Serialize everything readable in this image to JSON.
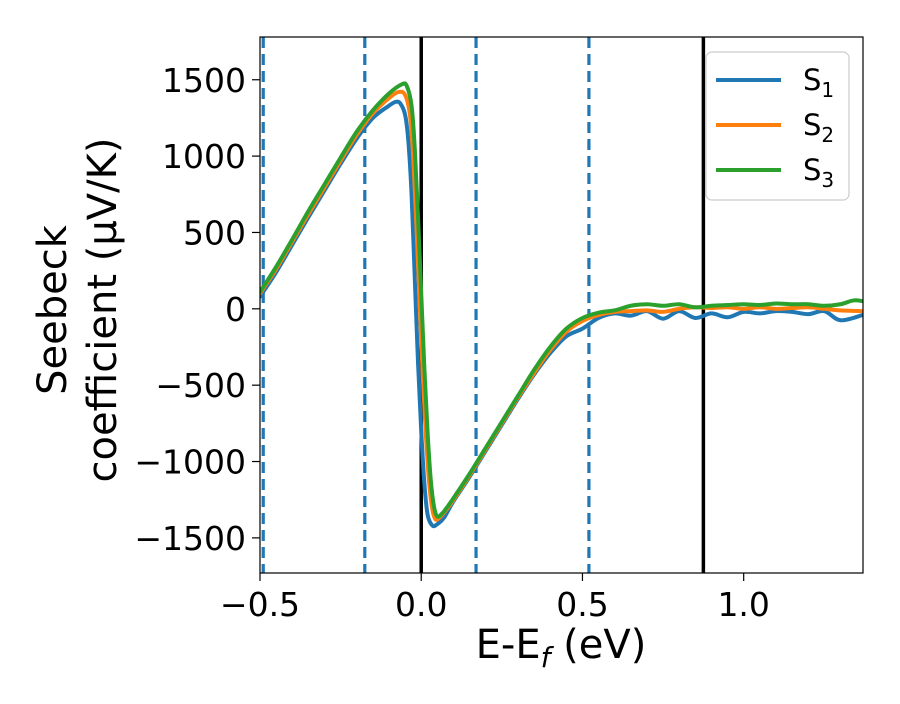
{
  "chart_data": {
    "type": "line",
    "title": "",
    "xlabel": {
      "main": "E-E",
      "sub": "f",
      "unit": " (eV)"
    },
    "ylabel": {
      "line1": "Seebeck",
      "line2": "coefficient  (μV/K)"
    },
    "xlim": [
      -0.5,
      1.37
    ],
    "ylim": [
      -1730,
      1780
    ],
    "xticks": [
      {
        "value": -0.5,
        "label": "−0.5"
      },
      {
        "value": 0.0,
        "label": "0.0"
      },
      {
        "value": 0.5,
        "label": "0.5"
      },
      {
        "value": 1.0,
        "label": "1.0"
      }
    ],
    "yticks": [
      {
        "value": -1500,
        "label": "−1500"
      },
      {
        "value": -1000,
        "label": "−1000"
      },
      {
        "value": -500,
        "label": "−500"
      },
      {
        "value": 0,
        "label": "0"
      },
      {
        "value": 500,
        "label": "500"
      },
      {
        "value": 1000,
        "label": "1000"
      },
      {
        "value": 1500,
        "label": "1500"
      }
    ],
    "grid": false,
    "legend_position": "top-right",
    "vertical_lines": [
      {
        "x": -0.49,
        "style": "dashed",
        "color": "#1f77b4"
      },
      {
        "x": -0.175,
        "style": "dashed",
        "color": "#1f77b4"
      },
      {
        "x": 0.0,
        "style": "solid",
        "color": "#000000"
      },
      {
        "x": 0.17,
        "style": "dashed",
        "color": "#1f77b4"
      },
      {
        "x": 0.52,
        "style": "dashed",
        "color": "#1f77b4"
      },
      {
        "x": 0.875,
        "style": "solid",
        "color": "#000000"
      }
    ],
    "series": [
      {
        "name": "S",
        "name_sub": "1",
        "color": "#1f77b4",
        "points": [
          [
            -0.5,
            80
          ],
          [
            -0.45,
            240
          ],
          [
            -0.4,
            420
          ],
          [
            -0.35,
            600
          ],
          [
            -0.3,
            775
          ],
          [
            -0.25,
            950
          ],
          [
            -0.2,
            1115
          ],
          [
            -0.15,
            1250
          ],
          [
            -0.1,
            1330
          ],
          [
            -0.08,
            1355
          ],
          [
            -0.065,
            1345
          ],
          [
            -0.05,
            1270
          ],
          [
            -0.04,
            1100
          ],
          [
            -0.03,
            750
          ],
          [
            -0.02,
            200
          ],
          [
            -0.01,
            -350
          ],
          [
            0.0,
            -800
          ],
          [
            0.01,
            -1150
          ],
          [
            0.02,
            -1350
          ],
          [
            0.035,
            -1420
          ],
          [
            0.05,
            -1410
          ],
          [
            0.07,
            -1370
          ],
          [
            0.1,
            -1260
          ],
          [
            0.15,
            -1100
          ],
          [
            0.2,
            -930
          ],
          [
            0.25,
            -760
          ],
          [
            0.3,
            -590
          ],
          [
            0.35,
            -430
          ],
          [
            0.4,
            -290
          ],
          [
            0.45,
            -180
          ],
          [
            0.5,
            -130
          ],
          [
            0.55,
            -60
          ],
          [
            0.6,
            -30
          ],
          [
            0.65,
            -45
          ],
          [
            0.7,
            -15
          ],
          [
            0.75,
            -65
          ],
          [
            0.8,
            -15
          ],
          [
            0.85,
            -60
          ],
          [
            0.9,
            -30
          ],
          [
            0.95,
            -55
          ],
          [
            1.0,
            -20
          ],
          [
            1.05,
            -30
          ],
          [
            1.1,
            -15
          ],
          [
            1.15,
            -20
          ],
          [
            1.2,
            -35
          ],
          [
            1.25,
            -15
          ],
          [
            1.3,
            -75
          ],
          [
            1.37,
            -40
          ]
        ]
      },
      {
        "name": "S",
        "name_sub": "2",
        "color": "#ff7f0e",
        "points": [
          [
            -0.5,
            100
          ],
          [
            -0.45,
            260
          ],
          [
            -0.4,
            440
          ],
          [
            -0.35,
            620
          ],
          [
            -0.3,
            795
          ],
          [
            -0.25,
            970
          ],
          [
            -0.2,
            1140
          ],
          [
            -0.15,
            1280
          ],
          [
            -0.1,
            1380
          ],
          [
            -0.07,
            1420
          ],
          [
            -0.05,
            1400
          ],
          [
            -0.035,
            1270
          ],
          [
            -0.025,
            1000
          ],
          [
            -0.015,
            550
          ],
          [
            -0.005,
            50
          ],
          [
            0.005,
            -450
          ],
          [
            0.015,
            -850
          ],
          [
            0.025,
            -1150
          ],
          [
            0.035,
            -1320
          ],
          [
            0.045,
            -1380
          ],
          [
            0.06,
            -1360
          ],
          [
            0.08,
            -1310
          ],
          [
            0.1,
            -1250
          ],
          [
            0.15,
            -1090
          ],
          [
            0.2,
            -920
          ],
          [
            0.25,
            -750
          ],
          [
            0.3,
            -580
          ],
          [
            0.35,
            -420
          ],
          [
            0.4,
            -270
          ],
          [
            0.45,
            -150
          ],
          [
            0.5,
            -80
          ],
          [
            0.55,
            -40
          ],
          [
            0.6,
            -20
          ],
          [
            0.65,
            -15
          ],
          [
            0.7,
            -10
          ],
          [
            0.75,
            -20
          ],
          [
            0.8,
            0
          ],
          [
            0.85,
            10
          ],
          [
            0.9,
            5
          ],
          [
            0.95,
            10
          ],
          [
            1.0,
            0
          ],
          [
            1.05,
            10
          ],
          [
            1.1,
            0
          ],
          [
            1.15,
            5
          ],
          [
            1.2,
            10
          ],
          [
            1.25,
            0
          ],
          [
            1.3,
            -10
          ],
          [
            1.37,
            -15
          ]
        ]
      },
      {
        "name": "S",
        "name_sub": "3",
        "color": "#2ca02c",
        "points": [
          [
            -0.5,
            110
          ],
          [
            -0.45,
            275
          ],
          [
            -0.4,
            455
          ],
          [
            -0.35,
            640
          ],
          [
            -0.3,
            815
          ],
          [
            -0.25,
            990
          ],
          [
            -0.2,
            1160
          ],
          [
            -0.15,
            1300
          ],
          [
            -0.1,
            1410
          ],
          [
            -0.06,
            1470
          ],
          [
            -0.045,
            1460
          ],
          [
            -0.03,
            1330
          ],
          [
            -0.02,
            1050
          ],
          [
            -0.01,
            600
          ],
          [
            0.0,
            100
          ],
          [
            0.01,
            -400
          ],
          [
            0.02,
            -820
          ],
          [
            0.03,
            -1130
          ],
          [
            0.04,
            -1300
          ],
          [
            0.05,
            -1360
          ],
          [
            0.065,
            -1340
          ],
          [
            0.08,
            -1300
          ],
          [
            0.1,
            -1240
          ],
          [
            0.15,
            -1080
          ],
          [
            0.2,
            -910
          ],
          [
            0.25,
            -740
          ],
          [
            0.3,
            -570
          ],
          [
            0.35,
            -400
          ],
          [
            0.4,
            -250
          ],
          [
            0.45,
            -130
          ],
          [
            0.5,
            -60
          ],
          [
            0.55,
            -25
          ],
          [
            0.6,
            -10
          ],
          [
            0.65,
            20
          ],
          [
            0.7,
            30
          ],
          [
            0.75,
            20
          ],
          [
            0.8,
            30
          ],
          [
            0.85,
            10
          ],
          [
            0.9,
            20
          ],
          [
            0.95,
            25
          ],
          [
            1.0,
            30
          ],
          [
            1.05,
            25
          ],
          [
            1.1,
            35
          ],
          [
            1.15,
            30
          ],
          [
            1.2,
            30
          ],
          [
            1.25,
            20
          ],
          [
            1.3,
            30
          ],
          [
            1.34,
            55
          ],
          [
            1.37,
            50
          ]
        ]
      }
    ]
  }
}
